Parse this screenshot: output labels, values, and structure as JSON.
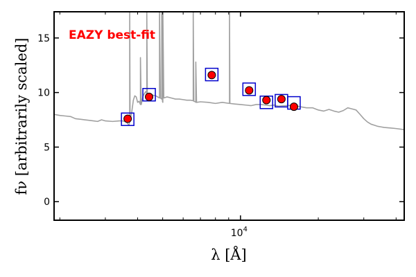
{
  "chart_data": {
    "type": "scatter",
    "xlabel": "λ [Å]",
    "ylabel": "fν [arbitrarily scaled]",
    "xscale": "log",
    "xlim": [
      1900,
      43000
    ],
    "ylim": [
      -1.7,
      17.4
    ],
    "xticks": [
      {
        "value": 10000,
        "base": "10",
        "exp": "4"
      }
    ],
    "yticks": [
      0,
      5,
      10,
      15
    ],
    "grid": false,
    "annotation": {
      "text": "EAZY best-fit",
      "color": "#ff0000"
    },
    "colors": {
      "sed": "#a0a0a0",
      "photometry": "#ff0000",
      "model": "#0000cc"
    },
    "series": [
      {
        "kind": "sed-line",
        "x": [
          1900,
          2000,
          2100,
          2200,
          2300,
          2400,
          2500,
          2600,
          2700,
          2800,
          2900,
          3000,
          3200,
          3400,
          3500,
          3600,
          3650,
          3700,
          3727,
          3727,
          3740,
          3800,
          3850,
          3900,
          3950,
          4000,
          4050,
          4101,
          4101,
          4130,
          4200,
          4300,
          4340,
          4340,
          4360,
          4500,
          4700,
          4861,
          4861,
          4900,
          4959,
          4959,
          4990,
          5007,
          5007,
          5050,
          5200,
          5400,
          5600,
          5800,
          6000,
          6200,
          6400,
          6563,
          6563,
          6600,
          6700,
          6716,
          6716,
          6760,
          7000,
          7500,
          8000,
          8500,
          9069,
          9069,
          9100,
          9500,
          10000,
          10500,
          11000,
          11500,
          12000,
          12500,
          13000,
          13500,
          14000,
          15000,
          16000,
          17000,
          18000,
          19000,
          20000,
          21000,
          22000,
          23000,
          24000,
          25000,
          26000,
          27000,
          28000,
          29000,
          30000,
          31000,
          32000,
          33000,
          34000,
          35000,
          36000,
          38000,
          40000,
          43000
        ],
        "y": [
          8.0,
          7.9,
          7.85,
          7.8,
          7.6,
          7.55,
          7.5,
          7.45,
          7.4,
          7.35,
          7.5,
          7.4,
          7.35,
          7.4,
          7.4,
          7.3,
          7.2,
          7.0,
          7.3,
          17.4,
          7.4,
          8.3,
          9.3,
          9.7,
          9.6,
          9.1,
          9.2,
          8.9,
          13.2,
          8.9,
          9.7,
          10.1,
          9.9,
          17.4,
          9.9,
          9.8,
          9.7,
          9.5,
          17.4,
          9.5,
          9.4,
          17.4,
          9.2,
          9.1,
          17.4,
          9.5,
          9.6,
          9.5,
          9.4,
          9.4,
          9.35,
          9.3,
          9.3,
          9.25,
          17.4,
          9.2,
          9.15,
          9.1,
          12.8,
          9.1,
          9.15,
          9.1,
          9.0,
          9.1,
          9.0,
          17.4,
          9.0,
          8.95,
          8.9,
          8.85,
          8.8,
          8.9,
          8.9,
          8.85,
          8.8,
          8.85,
          8.75,
          8.8,
          8.85,
          8.7,
          8.6,
          8.6,
          8.4,
          8.3,
          8.45,
          8.3,
          8.2,
          8.35,
          8.6,
          8.5,
          8.4,
          8.0,
          7.6,
          7.3,
          7.1,
          7.0,
          6.9,
          6.85,
          6.8,
          6.75,
          6.7,
          6.6
        ]
      },
      {
        "kind": "model-squares",
        "x": [
          3660,
          4430,
          7740,
          10800,
          12600,
          14400,
          16100
        ],
        "y": [
          7.55,
          9.8,
          11.65,
          10.3,
          9.1,
          9.25,
          9.05
        ]
      },
      {
        "kind": "observed-points",
        "x": [
          3660,
          4430,
          7740,
          10800,
          12600,
          14400,
          16100
        ],
        "y": [
          7.6,
          9.6,
          11.6,
          10.2,
          9.3,
          9.4,
          8.7
        ]
      }
    ]
  }
}
